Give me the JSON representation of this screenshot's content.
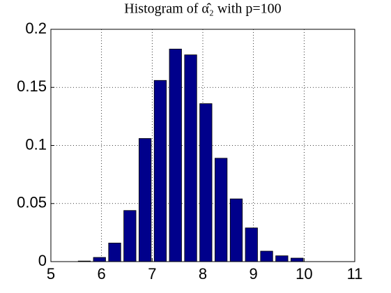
{
  "chart_data": {
    "type": "bar",
    "title": "Histogram of α̂₂ with p=100",
    "x": [
      5.66,
      5.96,
      6.26,
      6.56,
      6.86,
      7.16,
      7.46,
      7.76,
      8.06,
      8.36,
      8.66,
      8.96,
      9.26,
      9.56,
      9.86
    ],
    "values": [
      0.0005,
      0.0036,
      0.016,
      0.044,
      0.106,
      0.156,
      0.183,
      0.178,
      0.136,
      0.089,
      0.054,
      0.029,
      0.009,
      0.005,
      0.003
    ],
    "color": "#00008b",
    "xlim": [
      5,
      11
    ],
    "xticks": [
      5,
      6,
      7,
      8,
      9,
      10,
      11
    ],
    "ylim": [
      0,
      0.2
    ],
    "yticks": [
      0,
      0.05,
      0.1,
      0.15,
      0.2
    ],
    "grid": true
  }
}
